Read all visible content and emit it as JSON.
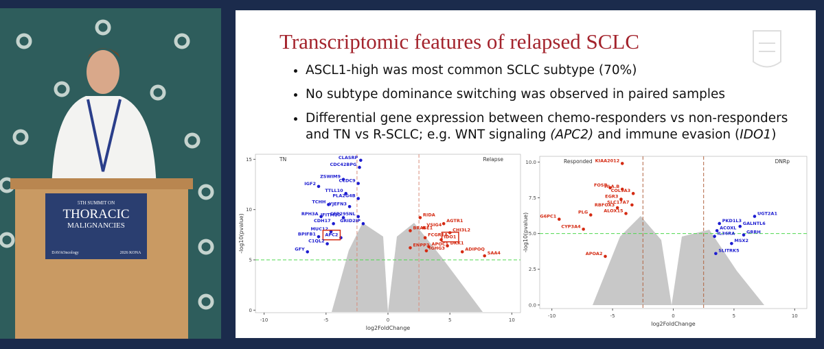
{
  "podium": {
    "line1": "5TH SUMMIT ON",
    "line2": "THORACIC",
    "line3": "MALIGNANCIES",
    "sponsor": "DAVAOncology",
    "event": "2026 KONA"
  },
  "slide": {
    "title": "Transcriptomic features of relapsed SCLC",
    "bullets": [
      [
        {
          "text": "ASCL1-high was most common SCLC subtype (70%)",
          "italic": false
        }
      ],
      [
        {
          "text": "No subtype dominance switching was observed in paired samples",
          "italic": false
        }
      ],
      [
        {
          "text": "Differential gene expression between chemo-responders vs non-responders and TN vs R-SCLC; e.g. WNT signaling ",
          "italic": false
        },
        {
          "text": "(APC2)",
          "italic": true
        },
        {
          "text": " and immune evasion (",
          "italic": false
        },
        {
          "text": "IDO1",
          "italic": true
        },
        {
          "text": ")",
          "italic": false
        }
      ]
    ],
    "plots": [
      {
        "type": "scatter",
        "xlabel": "log2FoldChange",
        "ylabel": "-log10(pvalue)",
        "annotations": [
          "TN",
          "Relapse"
        ],
        "xlim": [
          -10.7,
          10.7
        ],
        "ylim": [
          -0.25,
          15.5
        ],
        "xticks": [
          -10,
          -5,
          0,
          5,
          10
        ],
        "yticks": [
          0,
          5,
          10,
          15
        ],
        "thresholds": {
          "x": [
            -2.5,
            2.5
          ],
          "y": 5
        },
        "colors": {
          "down": "#1c1cd0",
          "up": "#d42a12",
          "threshold_x": "#d98c7a",
          "threshold_y": "#4cd84c"
        },
        "points": [
          {
            "label": "CLASRP",
            "x": -2.2,
            "y": 14.9,
            "dir": "down"
          },
          {
            "label": "CDC42BPG",
            "x": -2.3,
            "y": 14.2,
            "dir": "down"
          },
          {
            "label": "ZSWIM9",
            "x": -3.6,
            "y": 13.0,
            "dir": "down"
          },
          {
            "label": "CCDC9",
            "x": -2.4,
            "y": 12.6,
            "dir": "down"
          },
          {
            "label": "IGF2",
            "x": -5.6,
            "y": 12.3,
            "dir": "down"
          },
          {
            "label": "TTLL10",
            "x": -3.4,
            "y": 11.6,
            "dir": "down"
          },
          {
            "label": "PLA2G4B",
            "x": -2.4,
            "y": 11.1,
            "dir": "down"
          },
          {
            "label": "TCHH",
            "x": -4.8,
            "y": 10.5,
            "dir": "down"
          },
          {
            "label": "YJEFN3",
            "x": -3.1,
            "y": 10.3,
            "dir": "down"
          },
          {
            "label": "RPH3A",
            "x": -5.4,
            "y": 9.3,
            "dir": "down"
          },
          {
            "label": "IFITM10",
            "x": -3.6,
            "y": 9.2,
            "dir": "down"
          },
          {
            "label": "CEP295NL",
            "x": -2.4,
            "y": 9.3,
            "dir": "down"
          },
          {
            "label": "CDH17",
            "x": -4.4,
            "y": 8.6,
            "dir": "down"
          },
          {
            "label": "GRID2IP",
            "x": -2.0,
            "y": 8.6,
            "dir": "down"
          },
          {
            "label": "MUC12",
            "x": -4.6,
            "y": 7.8,
            "dir": "down"
          },
          {
            "label": "APC2",
            "x": -3.8,
            "y": 7.2,
            "dir": "down",
            "highlight": true
          },
          {
            "label": "BPIFB1",
            "x": -5.6,
            "y": 7.3,
            "dir": "down"
          },
          {
            "label": "C1QL2",
            "x": -4.9,
            "y": 6.6,
            "dir": "down"
          },
          {
            "label": "GFY",
            "x": -6.5,
            "y": 5.8,
            "dir": "down"
          },
          {
            "label": "RIDA",
            "x": 2.6,
            "y": 9.2,
            "dir": "up"
          },
          {
            "label": "AGTR1",
            "x": 4.5,
            "y": 8.6,
            "dir": "up"
          },
          {
            "label": "VSIG4",
            "x": 2.9,
            "y": 8.2,
            "dir": "up"
          },
          {
            "label": "BRASE1",
            "x": 1.8,
            "y": 7.9,
            "dir": "up"
          },
          {
            "label": "CHI3L2",
            "x": 5.0,
            "y": 7.7,
            "dir": "up"
          },
          {
            "label": "FCGR1A",
            "x": 3.0,
            "y": 7.2,
            "dir": "up"
          },
          {
            "label": "IDO1",
            "x": 4.3,
            "y": 7.0,
            "dir": "up",
            "highlight": true
          },
          {
            "label": "ENPP3",
            "x": 1.8,
            "y": 6.2,
            "dir": "up"
          },
          {
            "label": "APOC1",
            "x": 3.3,
            "y": 6.3,
            "dir": "up"
          },
          {
            "label": "DKK1",
            "x": 4.8,
            "y": 6.4,
            "dir": "up"
          },
          {
            "label": "IGHG3",
            "x": 3.1,
            "y": 5.9,
            "dir": "up"
          },
          {
            "label": "ADIPOQ",
            "x": 6.0,
            "y": 5.8,
            "dir": "up"
          },
          {
            "label": "SAA4",
            "x": 7.8,
            "y": 5.4,
            "dir": "up"
          }
        ]
      },
      {
        "type": "scatter",
        "xlabel": "log2FoldChange",
        "ylabel": "-log10(pvalue)",
        "annotations": [
          "Responded",
          "DNRp"
        ],
        "xlim": [
          -11,
          11
        ],
        "ylim": [
          -0.25,
          10.4
        ],
        "xticks": [
          -10,
          -5,
          0,
          5,
          10
        ],
        "yticks": [
          {
            "value": 0,
            "label": "0.0"
          },
          {
            "value": 2.5,
            "label": "2.5"
          },
          {
            "value": 5,
            "label": "5.0"
          },
          {
            "value": 7.5,
            "label": "7.5"
          },
          {
            "value": 10,
            "label": "10.0"
          }
        ],
        "thresholds": {
          "x": [
            -2.5,
            2.5
          ],
          "y": 5
        },
        "colors": {
          "down": "#1c1cd0",
          "up": "#d42a12",
          "threshold_x": "#b0633f",
          "threshold_y": "#4cd84c"
        },
        "points": [
          {
            "label": "KIAA2012",
            "x": -4.2,
            "y": 9.9,
            "dir": "up"
          },
          {
            "label": "FOSB",
            "x": -5.2,
            "y": 8.2,
            "dir": "up"
          },
          {
            "label": "HLA.B",
            "x": -4.2,
            "y": 8.1,
            "dir": "up"
          },
          {
            "label": "COL9A3",
            "x": -3.3,
            "y": 7.8,
            "dir": "up"
          },
          {
            "label": "EGR3",
            "x": -4.3,
            "y": 7.4,
            "dir": "up"
          },
          {
            "label": "SLC17A7",
            "x": -3.4,
            "y": 7.0,
            "dir": "up"
          },
          {
            "label": "RBFOX3",
            "x": -4.6,
            "y": 6.8,
            "dir": "up"
          },
          {
            "label": "ALOX15",
            "x": -3.9,
            "y": 6.4,
            "dir": "up"
          },
          {
            "label": "PLG",
            "x": -6.8,
            "y": 6.3,
            "dir": "up"
          },
          {
            "label": "G6PC1",
            "x": -9.4,
            "y": 6.0,
            "dir": "up"
          },
          {
            "label": "CYP3A4",
            "x": -7.4,
            "y": 5.3,
            "dir": "up"
          },
          {
            "label": "APOA2",
            "x": -5.6,
            "y": 3.4,
            "dir": "up"
          },
          {
            "label": "UGT2A1",
            "x": 6.7,
            "y": 6.2,
            "dir": "down"
          },
          {
            "label": "PKD1L3",
            "x": 3.8,
            "y": 5.7,
            "dir": "down"
          },
          {
            "label": "GALNTL6",
            "x": 5.5,
            "y": 5.5,
            "dir": "down"
          },
          {
            "label": "ACOXL",
            "x": 3.6,
            "y": 5.2,
            "dir": "down"
          },
          {
            "label": "IL36RA",
            "x": 3.4,
            "y": 4.8,
            "dir": "down"
          },
          {
            "label": "GRRH",
            "x": 5.8,
            "y": 4.9,
            "dir": "down"
          },
          {
            "label": "MSX2",
            "x": 4.8,
            "y": 4.3,
            "dir": "down"
          },
          {
            "label": "SLITRK5",
            "x": 3.5,
            "y": 3.6,
            "dir": "down"
          }
        ]
      }
    ]
  }
}
